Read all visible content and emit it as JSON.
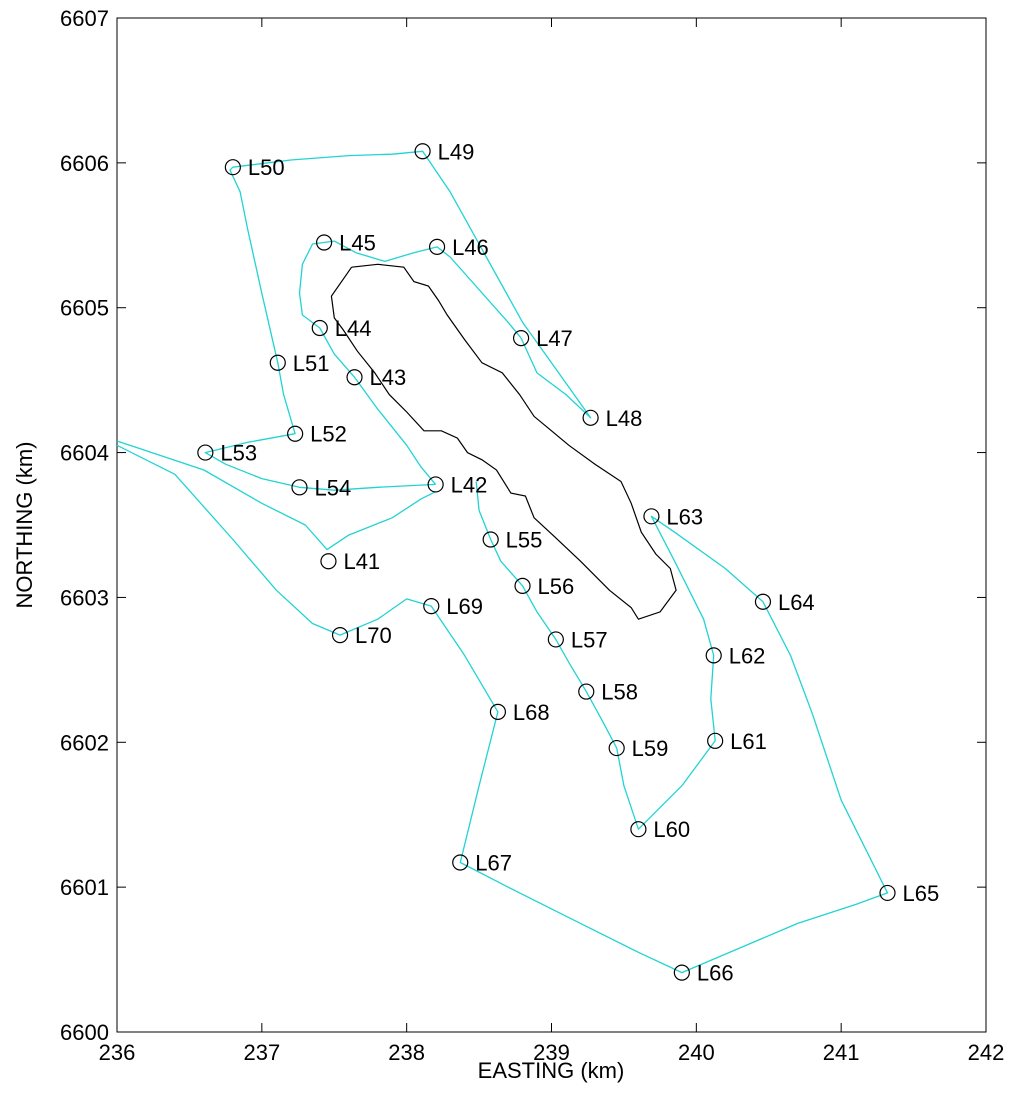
{
  "chart_data": {
    "type": "scatter",
    "title": "",
    "xlabel": "EASTING (km)",
    "ylabel": "NORTHING (km)",
    "xlim": [
      236,
      242
    ],
    "ylim": [
      6600,
      6607
    ],
    "xticks": [
      236,
      237,
      238,
      239,
      240,
      241,
      242
    ],
    "yticks": [
      6600,
      6601,
      6602,
      6603,
      6604,
      6605,
      6606,
      6607
    ],
    "grid": false,
    "legend": "none",
    "colors": {
      "track": "#22d3d3",
      "outline": "#000000",
      "marker": "#000000"
    },
    "stations": [
      {
        "name": "L41",
        "x": 237.46,
        "y": 6603.25
      },
      {
        "name": "L42",
        "x": 238.2,
        "y": 6603.78
      },
      {
        "name": "L43",
        "x": 237.64,
        "y": 6604.52
      },
      {
        "name": "L44",
        "x": 237.4,
        "y": 6604.86
      },
      {
        "name": "L45",
        "x": 237.43,
        "y": 6605.45
      },
      {
        "name": "L46",
        "x": 238.21,
        "y": 6605.42
      },
      {
        "name": "L47",
        "x": 238.79,
        "y": 6604.79
      },
      {
        "name": "L48",
        "x": 239.27,
        "y": 6604.24
      },
      {
        "name": "L49",
        "x": 238.11,
        "y": 6606.08
      },
      {
        "name": "L50",
        "x": 236.8,
        "y": 6605.97
      },
      {
        "name": "L51",
        "x": 237.11,
        "y": 6604.62
      },
      {
        "name": "L52",
        "x": 237.23,
        "y": 6604.13
      },
      {
        "name": "L53",
        "x": 236.61,
        "y": 6604.0
      },
      {
        "name": "L54",
        "x": 237.26,
        "y": 6603.76
      },
      {
        "name": "L55",
        "x": 238.58,
        "y": 6603.4
      },
      {
        "name": "L56",
        "x": 238.8,
        "y": 6603.08
      },
      {
        "name": "L57",
        "x": 239.03,
        "y": 6602.71
      },
      {
        "name": "L58",
        "x": 239.24,
        "y": 6602.35
      },
      {
        "name": "L59",
        "x": 239.45,
        "y": 6601.96
      },
      {
        "name": "L60",
        "x": 239.6,
        "y": 6601.4
      },
      {
        "name": "L61",
        "x": 240.13,
        "y": 6602.01
      },
      {
        "name": "L62",
        "x": 240.12,
        "y": 6602.6
      },
      {
        "name": "L63",
        "x": 239.69,
        "y": 6603.56
      },
      {
        "name": "L64",
        "x": 240.46,
        "y": 6602.97
      },
      {
        "name": "L65",
        "x": 241.32,
        "y": 6600.96
      },
      {
        "name": "L66",
        "x": 239.9,
        "y": 6600.41
      },
      {
        "name": "L67",
        "x": 238.37,
        "y": 6601.17
      },
      {
        "name": "L68",
        "x": 238.63,
        "y": 6602.21
      },
      {
        "name": "L69",
        "x": 238.17,
        "y": 6602.94
      },
      {
        "name": "L70",
        "x": 237.54,
        "y": 6602.74
      }
    ],
    "tracks": [
      [
        [
          238.79,
          6604.79
        ],
        [
          238.7,
          6604.9
        ],
        [
          238.3,
          6605.35
        ],
        [
          238.21,
          6605.42
        ],
        [
          238.05,
          6605.38
        ],
        [
          237.85,
          6605.32
        ],
        [
          237.65,
          6605.38
        ],
        [
          237.5,
          6605.46
        ],
        [
          237.35,
          6605.44
        ],
        [
          237.28,
          6605.3
        ],
        [
          237.26,
          6605.1
        ],
        [
          237.28,
          6604.95
        ],
        [
          237.4,
          6604.86
        ],
        [
          237.5,
          6604.68
        ],
        [
          237.64,
          6604.52
        ],
        [
          237.8,
          6604.3
        ],
        [
          238.0,
          6604.05
        ],
        [
          238.1,
          6603.9
        ],
        [
          238.2,
          6603.78
        ]
      ],
      [
        [
          238.2,
          6603.78
        ],
        [
          237.8,
          6603.76
        ],
        [
          237.5,
          6603.74
        ],
        [
          237.26,
          6603.76
        ],
        [
          237.0,
          6603.82
        ],
        [
          236.75,
          6603.92
        ],
        [
          236.61,
          6604.0
        ],
        [
          236.9,
          6604.07
        ],
        [
          237.23,
          6604.13
        ],
        [
          237.15,
          6604.4
        ],
        [
          237.11,
          6604.62
        ],
        [
          237.0,
          6605.1
        ],
        [
          236.9,
          6605.55
        ],
        [
          236.85,
          6605.8
        ],
        [
          236.78,
          6605.95
        ],
        [
          236.8,
          6605.97
        ],
        [
          237.2,
          6606.02
        ],
        [
          237.6,
          6606.05
        ],
        [
          237.9,
          6606.06
        ],
        [
          238.11,
          6606.08
        ],
        [
          238.3,
          6605.8
        ],
        [
          238.55,
          6605.35
        ],
        [
          238.8,
          6604.9
        ],
        [
          239.05,
          6604.55
        ],
        [
          239.27,
          6604.24
        ],
        [
          239.1,
          6604.4
        ],
        [
          238.9,
          6604.55
        ],
        [
          238.79,
          6604.79
        ]
      ],
      [
        [
          236.0,
          6604.08
        ],
        [
          236.6,
          6603.88
        ],
        [
          237.0,
          6603.65
        ],
        [
          237.3,
          6603.5
        ],
        [
          237.45,
          6603.33
        ],
        [
          237.6,
          6603.43
        ],
        [
          237.9,
          6603.55
        ],
        [
          238.1,
          6603.68
        ],
        [
          238.2,
          6603.73
        ]
      ],
      [
        [
          236.0,
          6604.05
        ],
        [
          236.4,
          6603.85
        ],
        [
          236.8,
          6603.4
        ],
        [
          237.1,
          6603.05
        ],
        [
          237.35,
          6602.82
        ],
        [
          237.54,
          6602.74
        ],
        [
          237.8,
          6602.85
        ],
        [
          238.0,
          6602.99
        ],
        [
          238.17,
          6602.94
        ],
        [
          238.4,
          6602.6
        ],
        [
          238.63,
          6602.21
        ],
        [
          238.5,
          6601.7
        ],
        [
          238.37,
          6601.17
        ],
        [
          238.7,
          6601.0
        ],
        [
          239.2,
          6600.75
        ],
        [
          239.6,
          6600.55
        ],
        [
          239.9,
          6600.41
        ],
        [
          240.3,
          6600.58
        ],
        [
          240.7,
          6600.75
        ],
        [
          241.1,
          6600.88
        ],
        [
          241.32,
          6600.96
        ],
        [
          241.0,
          6601.6
        ],
        [
          240.8,
          6602.2
        ],
        [
          240.65,
          6602.6
        ],
        [
          240.46,
          6602.97
        ],
        [
          240.2,
          6603.2
        ],
        [
          239.85,
          6603.45
        ],
        [
          239.69,
          6603.56
        ],
        [
          239.85,
          6603.25
        ],
        [
          240.05,
          6602.85
        ],
        [
          240.12,
          6602.6
        ],
        [
          240.1,
          6602.3
        ],
        [
          240.13,
          6602.01
        ],
        [
          239.9,
          6601.7
        ],
        [
          239.6,
          6601.4
        ],
        [
          239.5,
          6601.7
        ],
        [
          239.45,
          6601.96
        ],
        [
          239.35,
          6602.15
        ],
        [
          239.24,
          6602.35
        ],
        [
          239.12,
          6602.55
        ],
        [
          239.03,
          6602.71
        ],
        [
          238.9,
          6602.9
        ],
        [
          238.8,
          6603.08
        ],
        [
          238.65,
          6603.25
        ],
        [
          238.58,
          6603.4
        ],
        [
          238.5,
          6603.6
        ],
        [
          238.48,
          6603.8
        ]
      ]
    ],
    "outline": [
      [
        237.62,
        6605.28
      ],
      [
        237.8,
        6605.3
      ],
      [
        237.98,
        6605.28
      ],
      [
        238.05,
        6605.18
      ],
      [
        238.15,
        6605.15
      ],
      [
        238.22,
        6605.05
      ],
      [
        238.28,
        6604.95
      ],
      [
        238.4,
        6604.78
      ],
      [
        238.52,
        6604.62
      ],
      [
        238.66,
        6604.55
      ],
      [
        238.78,
        6604.4
      ],
      [
        238.88,
        6604.25
      ],
      [
        239.0,
        6604.15
      ],
      [
        239.12,
        6604.05
      ],
      [
        239.3,
        6603.92
      ],
      [
        239.48,
        6603.8
      ],
      [
        239.55,
        6603.65
      ],
      [
        239.62,
        6603.45
      ],
      [
        239.72,
        6603.3
      ],
      [
        239.82,
        6603.2
      ],
      [
        239.86,
        6603.05
      ],
      [
        239.75,
        6602.9
      ],
      [
        239.6,
        6602.85
      ],
      [
        239.55,
        6602.93
      ],
      [
        239.4,
        6603.05
      ],
      [
        239.2,
        6603.25
      ],
      [
        239.02,
        6603.42
      ],
      [
        238.88,
        6603.55
      ],
      [
        238.82,
        6603.7
      ],
      [
        238.72,
        6603.72
      ],
      [
        238.62,
        6603.88
      ],
      [
        238.52,
        6603.95
      ],
      [
        238.42,
        6604.0
      ],
      [
        238.35,
        6604.1
      ],
      [
        238.24,
        6604.15
      ],
      [
        238.12,
        6604.15
      ],
      [
        238.0,
        6604.28
      ],
      [
        237.88,
        6604.4
      ],
      [
        237.78,
        6604.55
      ],
      [
        237.66,
        6604.7
      ],
      [
        237.56,
        6604.85
      ],
      [
        237.5,
        6604.93
      ],
      [
        237.48,
        6605.08
      ],
      [
        237.62,
        6605.28
      ]
    ]
  }
}
